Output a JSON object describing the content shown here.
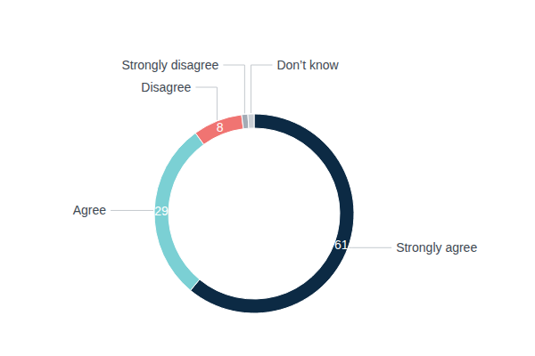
{
  "chart_data": {
    "type": "donut",
    "categories": [
      "Strongly agree",
      "Agree",
      "Disagree",
      "Strongly disagree",
      "Don’t know"
    ],
    "values": [
      61,
      29,
      8,
      1,
      1
    ],
    "colors": [
      "#0c2a44",
      "#7bd0d4",
      "#f07472",
      "#a3abb5",
      "#c9ced4"
    ],
    "data_labels": true,
    "value_labels": [
      "61",
      "29",
      "8",
      null,
      null
    ]
  }
}
